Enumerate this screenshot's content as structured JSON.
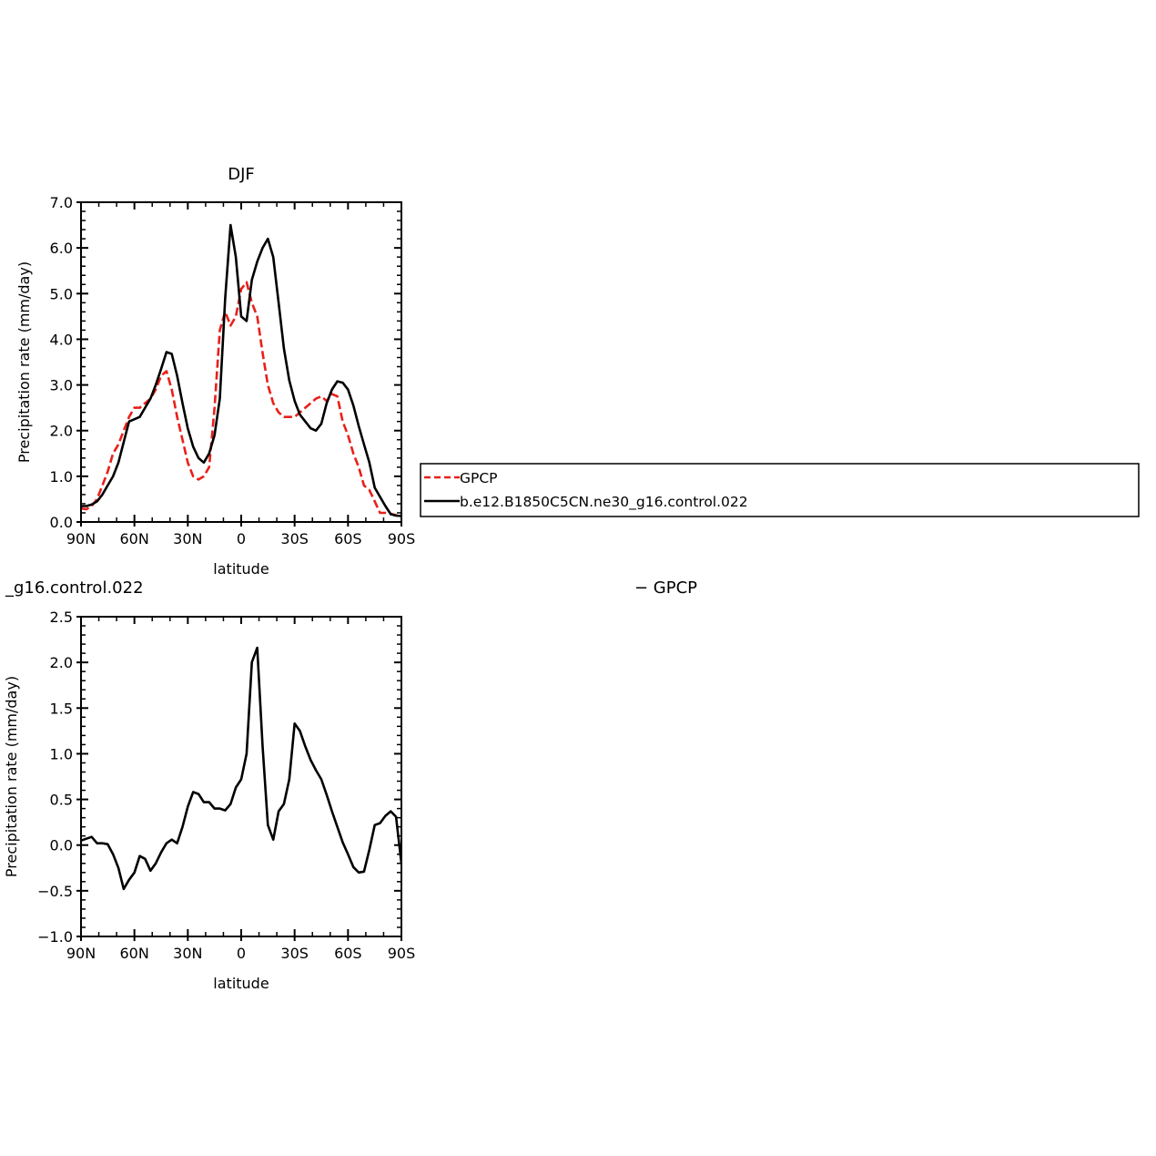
{
  "chart_data": [
    {
      "type": "line",
      "title": "DJF",
      "xlabel": "latitude",
      "ylabel": "Precipitation rate (mm/day)",
      "xlim": [
        90,
        -90
      ],
      "ylim": [
        0,
        7
      ],
      "x_ticks": [
        90,
        60,
        30,
        0,
        -30,
        -60,
        -90
      ],
      "x_tick_labels": [
        "90N",
        "60N",
        "30N",
        "0",
        "30S",
        "60S",
        "90S"
      ],
      "y_ticks": [
        0,
        1,
        2,
        3,
        4,
        5,
        6,
        7
      ],
      "y_tick_labels": [
        "0.0",
        "1.0",
        "2.0",
        "3.0",
        "4.0",
        "5.0",
        "6.0",
        "7.0"
      ],
      "grid": false,
      "legend": {
        "position": "right",
        "entries": [
          {
            "name": "GPCP",
            "color": "#e8201a",
            "dash": true
          },
          {
            "name": "b.e12.B1850C5CN.ne30_g16.control.022",
            "color": "#000000",
            "dash": false
          }
        ]
      },
      "series": [
        {
          "name": "GPCP",
          "color": "#e8201a",
          "style": "dashed",
          "x": [
            90,
            87,
            84,
            81,
            78,
            75,
            72,
            69,
            66,
            63,
            60,
            57,
            54,
            51,
            48,
            45,
            42,
            39,
            36,
            33,
            30,
            27,
            24,
            21,
            18,
            15,
            12,
            9,
            6,
            3,
            0,
            -3,
            -6,
            -9,
            -12,
            -15,
            -18,
            -21,
            -24,
            -27,
            -30,
            -33,
            -36,
            -39,
            -42,
            -45,
            -48,
            -51,
            -54,
            -57,
            -60,
            -63,
            -66,
            -69,
            -72,
            -75,
            -78,
            -81,
            -84,
            -87,
            -90
          ],
          "y": [
            0.3,
            0.28,
            0.35,
            0.5,
            0.8,
            1.1,
            1.5,
            1.7,
            2.0,
            2.3,
            2.5,
            2.5,
            2.6,
            2.7,
            2.9,
            3.2,
            3.3,
            2.9,
            2.3,
            1.8,
            1.3,
            1.0,
            0.93,
            1.0,
            1.2,
            2.5,
            4.2,
            4.6,
            4.3,
            4.5,
            5.1,
            5.25,
            4.8,
            4.5,
            3.7,
            3.0,
            2.6,
            2.4,
            2.3,
            2.3,
            2.3,
            2.4,
            2.5,
            2.6,
            2.7,
            2.75,
            2.65,
            2.8,
            2.75,
            2.2,
            1.9,
            1.5,
            1.2,
            0.8,
            0.7,
            0.45,
            0.2,
            0.2,
            0.18,
            0.15,
            0.1
          ]
        },
        {
          "name": "b.e12.B1850C5CN.ne30_g16.control.022",
          "color": "#000000",
          "style": "solid",
          "x": [
            90,
            87,
            84,
            81,
            78,
            75,
            72,
            69,
            66,
            63,
            60,
            57,
            54,
            51,
            48,
            45,
            42,
            39,
            36,
            33,
            30,
            27,
            24,
            21,
            18,
            15,
            12,
            9,
            6,
            3,
            0,
            -3,
            -6,
            -9,
            -12,
            -15,
            -18,
            -21,
            -24,
            -27,
            -30,
            -33,
            -36,
            -39,
            -42,
            -45,
            -48,
            -51,
            -54,
            -57,
            -60,
            -63,
            -66,
            -69,
            -72,
            -75,
            -78,
            -81,
            -84,
            -87,
            -90
          ],
          "y": [
            0.35,
            0.35,
            0.38,
            0.45,
            0.6,
            0.8,
            1.0,
            1.3,
            1.75,
            2.2,
            2.25,
            2.3,
            2.5,
            2.7,
            3.0,
            3.35,
            3.72,
            3.68,
            3.2,
            2.6,
            2.05,
            1.65,
            1.4,
            1.3,
            1.5,
            1.9,
            2.7,
            4.9,
            6.5,
            5.8,
            4.5,
            4.4,
            5.3,
            5.7,
            6.0,
            6.2,
            5.8,
            4.8,
            3.8,
            3.1,
            2.65,
            2.35,
            2.2,
            2.05,
            2.0,
            2.15,
            2.6,
            2.9,
            3.08,
            3.05,
            2.9,
            2.55,
            2.1,
            1.7,
            1.3,
            0.75,
            0.55,
            0.35,
            0.17,
            0.14,
            0.13
          ]
        }
      ]
    },
    {
      "type": "line",
      "title": "_g16.control.022",
      "title_right": "− GPCP",
      "xlabel": "latitude",
      "ylabel": "Precipitation rate (mm/day)",
      "xlim": [
        90,
        -90
      ],
      "ylim": [
        -1,
        2.5
      ],
      "x_ticks": [
        90,
        60,
        30,
        0,
        -30,
        -60,
        -90
      ],
      "x_tick_labels": [
        "90N",
        "60N",
        "30N",
        "0",
        "30S",
        "60S",
        "90S"
      ],
      "y_ticks": [
        -1,
        -0.5,
        0,
        0.5,
        1,
        1.5,
        2,
        2.5
      ],
      "y_tick_labels": [
        "−1.0",
        "−0.5",
        "0.0",
        "0.5",
        "1.0",
        "1.5",
        "2.0",
        "2.5"
      ],
      "grid": false,
      "series": [
        {
          "color": "#000000",
          "style": "solid",
          "x": [
            90,
            87,
            84,
            81,
            78,
            75,
            72,
            69,
            66,
            63,
            60,
            57,
            54,
            51,
            48,
            45,
            42,
            39,
            36,
            33,
            30,
            27,
            24,
            21,
            18,
            15,
            12,
            9,
            6,
            3,
            0,
            -3,
            -6,
            -9,
            -12,
            -15,
            -18,
            -21,
            -24,
            -27,
            -30,
            -33,
            -36,
            -39,
            -42,
            -45,
            -48,
            -51,
            -54,
            -57,
            -60,
            -63,
            -66,
            -69,
            -72,
            -75,
            -78,
            -81,
            -84,
            -87,
            -90
          ],
          "y": [
            0.05,
            0.07,
            0.09,
            0.02,
            0.02,
            0.01,
            -0.1,
            -0.25,
            -0.48,
            -0.38,
            -0.3,
            -0.12,
            -0.15,
            -0.28,
            -0.2,
            -0.08,
            0.02,
            0.06,
            0.02,
            0.2,
            0.42,
            0.58,
            0.56,
            0.47,
            0.47,
            0.4,
            0.4,
            0.38,
            0.45,
            0.63,
            0.72,
            1.0,
            2.0,
            2.16,
            1.08,
            0.22,
            0.06,
            0.37,
            0.45,
            0.72,
            1.33,
            1.25,
            1.08,
            0.93,
            0.82,
            0.72,
            0.55,
            0.37,
            0.2,
            0.03,
            -0.1,
            -0.24,
            -0.3,
            -0.29,
            -0.05,
            0.22,
            0.24,
            0.32,
            0.37,
            0.31,
            -0.2
          ]
        }
      ]
    }
  ]
}
